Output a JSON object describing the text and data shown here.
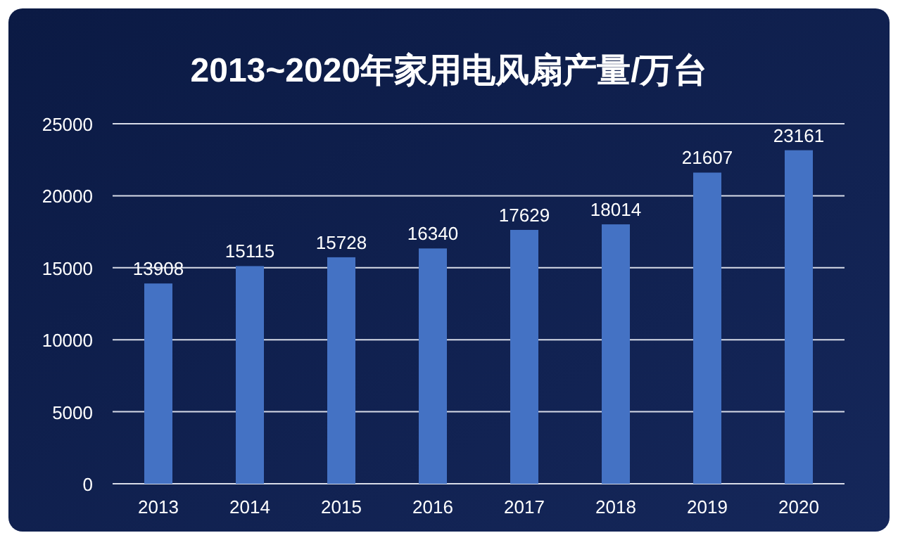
{
  "chart_data": {
    "type": "bar",
    "title": "2013~2020年家用电风扇产量/万台",
    "categories": [
      "2013",
      "2014",
      "2015",
      "2016",
      "2017",
      "2018",
      "2019",
      "2020"
    ],
    "values": [
      13908,
      15115,
      15728,
      16340,
      17629,
      18014,
      21607,
      23161
    ],
    "color": "#4472c4",
    "ylim": [
      0,
      25000
    ],
    "yticks": [
      0,
      5000,
      10000,
      15000,
      20000,
      25000
    ],
    "grid": "y",
    "data_labels": true
  }
}
